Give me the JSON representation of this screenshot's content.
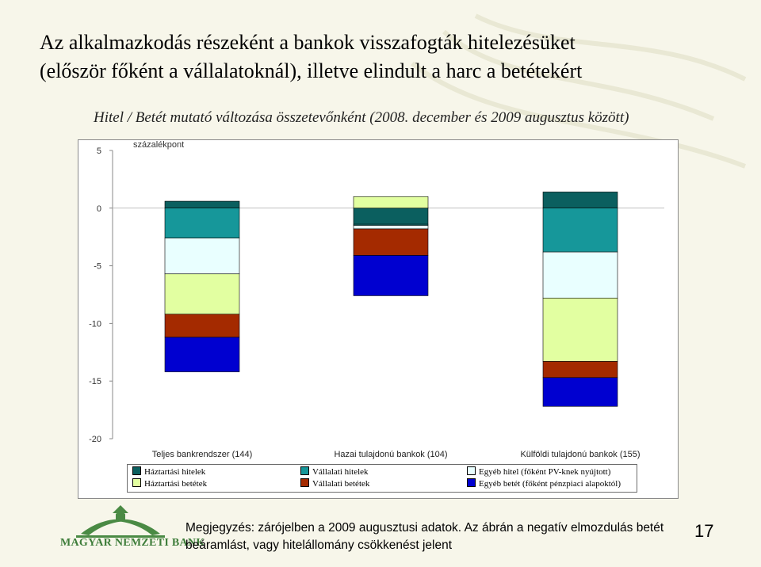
{
  "slide": {
    "title_line1": "Az alkalmazkodás részeként a bankok visszafogták hitelezésüket",
    "title_line2": "(először főként a vállalatoknál), illetve elindult a harc a betétekért",
    "subtitle": "Hitel / Betét mutató változása összetevőnként (2008. december és 2009 augusztus között)",
    "note_line1": "Megjegyzés: zárójelben a 2009 augusztusi adatok. Az ábrán a negatív elmozdulás betét",
    "note_line2": "beáramlást, vagy hitelállomány csökkenést jelent",
    "page_number": "17",
    "logo_text": "MAGYAR NEMZETI BANK"
  },
  "chart_data": {
    "type": "bar",
    "stacked": true,
    "ylabel": "százalékpont",
    "ylim": [
      -20,
      5
    ],
    "yticks": [
      5,
      0,
      -5,
      -10,
      -15,
      -20
    ],
    "grid": false,
    "legend_position": "bottom",
    "categories": [
      "Teljes bankrendszer (144)",
      "Hazai tulajdonú bankok (104)",
      "Külföldi tulajdonú bankok (155)"
    ],
    "series": [
      {
        "name": "Háztartási hitelek",
        "color": "#0b5f5f",
        "values": [
          0.6,
          -1.4,
          1.4
        ]
      },
      {
        "name": "Vállalati hitelek",
        "color": "#16979a",
        "values": [
          -2.6,
          -0.1,
          -3.8
        ]
      },
      {
        "name": "Egyéb hitel (főként PV-knek nyújtott)",
        "color": "#e9ffff",
        "values": [
          -3.1,
          -0.3,
          -4.0
        ]
      },
      {
        "name": "Háztartási betétek",
        "color": "#e2ffa1",
        "values": [
          -3.5,
          1.0,
          -5.5
        ]
      },
      {
        "name": "Vállalati betétek",
        "color": "#a42a00",
        "values": [
          -2.0,
          -2.3,
          -1.4
        ]
      },
      {
        "name": "Egyéb betét (főként pénzpiaci alapoktól)",
        "color": "#0000d0",
        "values": [
          -3.0,
          -3.5,
          -2.5
        ]
      }
    ]
  }
}
